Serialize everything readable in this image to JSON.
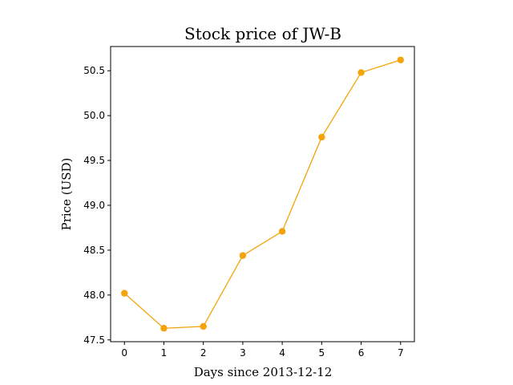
{
  "chart_data": {
    "type": "line",
    "title": "Stock price of JW-B",
    "xlabel": "Days since 2013-12-12",
    "ylabel": "Price (USD)",
    "x": [
      0,
      1,
      2,
      3,
      4,
      5,
      6,
      7
    ],
    "series": [
      {
        "values": [
          48.02,
          47.63,
          47.65,
          48.44,
          48.71,
          49.76,
          50.48,
          50.62
        ],
        "color": "#f5a30a",
        "marker": "circle"
      }
    ],
    "xticks": [
      "0",
      "1",
      "2",
      "3",
      "4",
      "5",
      "6",
      "7"
    ],
    "yticks": [
      "47.5",
      "48.0",
      "48.5",
      "49.0",
      "49.5",
      "50.0",
      "50.5"
    ],
    "xlim": [
      -0.35,
      7.35
    ],
    "ylim": [
      47.48,
      50.77
    ],
    "grid": false,
    "legend": "none"
  }
}
